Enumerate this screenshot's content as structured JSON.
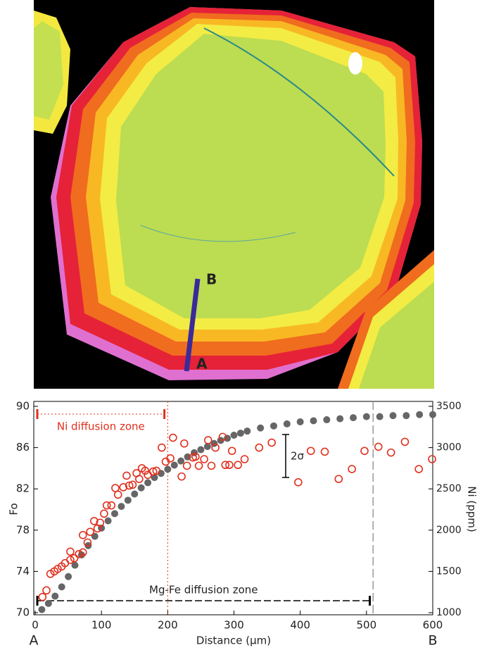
{
  "image": {
    "label_a": "A",
    "label_b": "B"
  },
  "chart_data": {
    "type": "scatter",
    "xlabel": "Distance (µm)",
    "ylabel": "Fo",
    "y2label": "Ni (ppm)",
    "end_labels": [
      "A",
      "B"
    ],
    "xlim": [
      0,
      600
    ],
    "xticks": [
      0,
      100,
      200,
      300,
      400,
      500,
      600
    ],
    "ylim": [
      70,
      90
    ],
    "yticks": [
      70,
      74,
      78,
      82,
      86,
      90
    ],
    "y2lim": [
      1000,
      3500
    ],
    "y2ticks": [
      1000,
      1500,
      2000,
      2500,
      3000,
      3500
    ],
    "series": [
      {
        "axis": "y",
        "color": "#666666",
        "filled": true,
        "x": [
          10,
          20,
          30,
          40,
          50,
          60,
          70,
          80,
          90,
          100,
          110,
          120,
          130,
          140,
          150,
          160,
          170,
          180,
          190,
          200,
          210,
          220,
          230,
          240,
          250,
          260,
          270,
          280,
          290,
          300,
          310,
          320,
          340,
          360,
          380,
          400,
          420,
          440,
          460,
          480,
          500,
          520,
          540,
          560,
          580,
          600
        ],
        "values": [
          70.3,
          70.9,
          71.6,
          72.5,
          73.5,
          74.6,
          75.6,
          76.5,
          77.4,
          78.2,
          78.9,
          79.6,
          80.3,
          80.9,
          81.5,
          82.1,
          82.6,
          83.1,
          83.5,
          83.9,
          84.3,
          84.7,
          85.1,
          85.5,
          85.8,
          86.1,
          86.4,
          86.7,
          86.9,
          87.2,
          87.4,
          87.6,
          87.9,
          88.1,
          88.3,
          88.5,
          88.6,
          88.7,
          88.8,
          88.9,
          89.0,
          89.0,
          89.1,
          89.1,
          89.2,
          89.2
        ]
      },
      {
        "axis": "y2",
        "color": "#e0301e",
        "filled": false,
        "x": [
          11,
          17,
          23,
          29,
          34,
          40,
          45,
          53,
          53,
          59,
          66,
          72,
          72,
          79,
          83,
          89,
          94,
          98,
          104,
          108,
          115,
          121,
          125,
          133,
          138,
          142,
          147,
          153,
          157,
          161,
          166,
          170,
          178,
          183,
          191,
          197,
          204,
          208,
          221,
          225,
          229,
          238,
          242,
          247,
          255,
          261,
          266,
          272,
          283,
          287,
          293,
          297,
          306,
          316,
          338,
          357,
          397,
          416,
          437,
          458,
          478,
          497,
          518,
          537,
          558,
          579,
          599
        ],
        "values": [
          1190,
          1270,
          1470,
          1500,
          1530,
          1560,
          1600,
          1640,
          1740,
          1660,
          1710,
          1730,
          1940,
          1850,
          1980,
          2110,
          2020,
          2090,
          2200,
          2300,
          2300,
          2510,
          2430,
          2520,
          2660,
          2540,
          2550,
          2690,
          2620,
          2750,
          2720,
          2670,
          2710,
          2720,
          3000,
          2830,
          2870,
          3120,
          2650,
          3050,
          2780,
          2880,
          2890,
          2780,
          2860,
          3090,
          2780,
          3000,
          3130,
          2790,
          2790,
          2960,
          2790,
          2860,
          3000,
          3060,
          2580,
          2960,
          2950,
          2620,
          2740,
          2960,
          3010,
          2940,
          3070,
          2740,
          2860
        ]
      }
    ],
    "ni_zone": {
      "text": "Ni diffusion zone",
      "start": 0,
      "end": 195,
      "line_x": 200
    },
    "mgfe_zone": {
      "text": "Mg-Fe diffusion zone",
      "start": 0,
      "end": 505,
      "line_x": 510
    },
    "error_bar_label": "2σ"
  }
}
